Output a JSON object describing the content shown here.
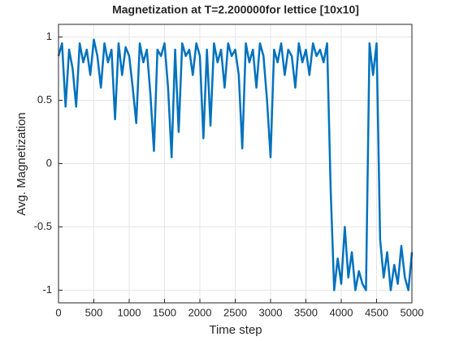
{
  "chart_data": {
    "type": "line",
    "title": "Magnetization at T=2.200000for lettice [10x10]",
    "x_label": "Time step",
    "y_label": "Avg. Magnetization",
    "x": [
      0,
      50,
      100,
      150,
      200,
      250,
      300,
      350,
      400,
      450,
      500,
      550,
      600,
      650,
      700,
      750,
      800,
      850,
      900,
      950,
      1000,
      1050,
      1100,
      1150,
      1200,
      1250,
      1300,
      1350,
      1400,
      1450,
      1500,
      1550,
      1600,
      1650,
      1700,
      1750,
      1800,
      1850,
      1900,
      1950,
      2000,
      2050,
      2100,
      2150,
      2200,
      2250,
      2300,
      2350,
      2400,
      2450,
      2500,
      2550,
      2600,
      2650,
      2700,
      2750,
      2800,
      2850,
      2900,
      2950,
      3000,
      3050,
      3100,
      3150,
      3200,
      3250,
      3300,
      3350,
      3400,
      3450,
      3500,
      3550,
      3600,
      3650,
      3700,
      3750,
      3800,
      3850,
      3900,
      3950,
      4000,
      4050,
      4100,
      4150,
      4200,
      4250,
      4300,
      4350,
      4400,
      4450,
      4500,
      4550,
      4600,
      4650,
      4700,
      4750,
      4800,
      4850,
      4900,
      4950,
      5000
    ],
    "series": [
      {
        "name": "Avg. Magnetization",
        "color": "#0072bd",
        "values": [
          0.85,
          0.95,
          0.45,
          0.9,
          0.75,
          0.45,
          0.95,
          0.8,
          0.9,
          0.7,
          0.98,
          0.85,
          0.6,
          0.95,
          0.8,
          0.9,
          0.35,
          0.95,
          0.7,
          0.92,
          0.85,
          0.6,
          0.32,
          0.95,
          0.8,
          0.9,
          0.55,
          0.1,
          0.9,
          0.85,
          0.95,
          0.6,
          0.05,
          0.9,
          0.25,
          0.95,
          0.85,
          0.9,
          0.7,
          0.95,
          0.85,
          0.2,
          0.9,
          0.3,
          0.95,
          0.8,
          0.9,
          0.6,
          0.95,
          0.85,
          0.9,
          0.7,
          0.12,
          0.95,
          0.8,
          0.9,
          0.6,
          0.95,
          0.85,
          0.5,
          0.05,
          0.9,
          0.8,
          0.95,
          0.7,
          0.9,
          0.85,
          0.6,
          0.95,
          0.8,
          0.9,
          0.7,
          0.95,
          0.85,
          0.9,
          0.8,
          0.95,
          -0.2,
          -1,
          -0.75,
          -0.95,
          -0.5,
          -0.9,
          -0.7,
          -1,
          -0.85,
          -0.95,
          -1,
          0.95,
          0.7,
          0.95,
          -0.6,
          -0.9,
          -0.7,
          -1,
          -0.8,
          -0.95,
          -0.65,
          -0.9,
          -1,
          -0.7
        ]
      }
    ],
    "xlim": [
      0,
      5000
    ],
    "xticks": [
      0,
      500,
      1000,
      1500,
      2000,
      2500,
      3000,
      3500,
      4000,
      4500,
      5000
    ],
    "ylim": [
      -1.1,
      1.1
    ],
    "yticks": [
      -1,
      -0.5,
      0,
      0.5,
      1
    ],
    "grid": true
  }
}
